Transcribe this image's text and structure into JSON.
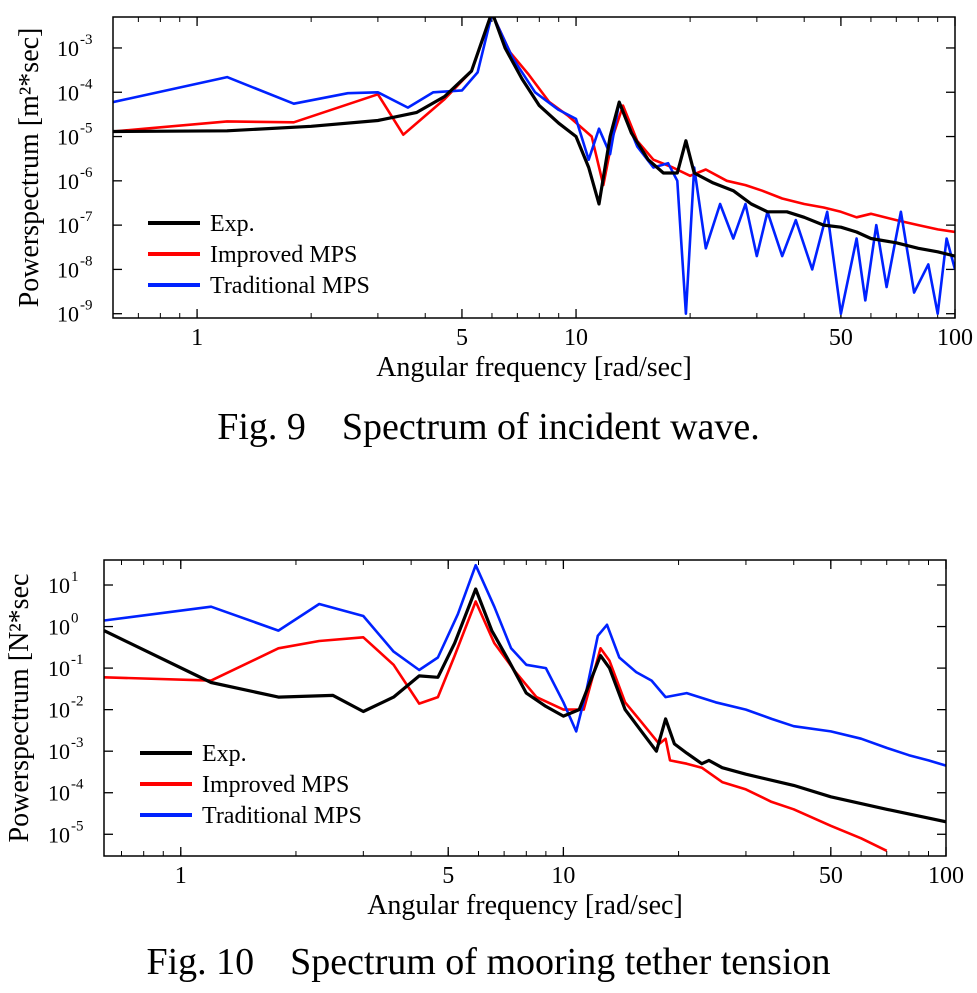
{
  "figures": [
    {
      "caption": {
        "number": "Fig. 9",
        "text": "Spectrum of incident wave."
      },
      "chart_data": {
        "type": "line",
        "title": "",
        "xlabel": "Angular frequency [rad/sec]",
        "ylabel": "Powerspectrum [m²*sec]",
        "xscale": "log",
        "yscale": "log",
        "xlim": [
          0.6,
          100
        ],
        "ylim": [
          8e-10,
          0.005
        ],
        "xticks": [
          1,
          5,
          10,
          50,
          100
        ],
        "xtick_labels": [
          "1",
          "5",
          "10",
          "50",
          "100"
        ],
        "yticks": [
          1e-09,
          1e-08,
          1e-07,
          1e-06,
          1e-05,
          0.0001,
          0.001
        ],
        "ytick_exponents": [
          "-9",
          "-8",
          "-7",
          "-6",
          "-5",
          "-4",
          "-3"
        ],
        "legend_position": "bottom-left",
        "series": [
          {
            "name": "Exp.",
            "color": "#000000",
            "points": [
              [
                0.6,
                1.3e-05
              ],
              [
                1.2,
                1.35e-05
              ],
              [
                2.0,
                1.7e-05
              ],
              [
                3.0,
                2.3e-05
              ],
              [
                3.8,
                3.5e-05
              ],
              [
                4.5,
                8e-05
              ],
              [
                5.3,
                0.0003
              ],
              [
                6.0,
                0.0065
              ],
              [
                6.5,
                0.001
              ],
              [
                7.2,
                0.0002
              ],
              [
                8.0,
                5e-05
              ],
              [
                9.0,
                2e-05
              ],
              [
                10.0,
                1e-05
              ],
              [
                10.8,
                2e-06
              ],
              [
                11.5,
                3e-07
              ],
              [
                12.3,
                1e-05
              ],
              [
                13.0,
                6e-05
              ],
              [
                14.0,
                1.2e-05
              ],
              [
                15.5,
                3e-06
              ],
              [
                17.0,
                1.5e-06
              ],
              [
                18.5,
                1.5e-06
              ],
              [
                19.5,
                8e-06
              ],
              [
                20.5,
                1.5e-06
              ],
              [
                23,
                9e-07
              ],
              [
                26,
                6e-07
              ],
              [
                29,
                3e-07
              ],
              [
                32,
                2e-07
              ],
              [
                36,
                2e-07
              ],
              [
                40,
                1.5e-07
              ],
              [
                45,
                1e-07
              ],
              [
                50,
                9e-08
              ],
              [
                55,
                7e-08
              ],
              [
                60,
                5e-08
              ],
              [
                70,
                4e-08
              ],
              [
                80,
                3e-08
              ],
              [
                90,
                2.5e-08
              ],
              [
                100,
                2e-08
              ]
            ]
          },
          {
            "name": "Improved MPS",
            "color": "#ff0000",
            "points": [
              [
                0.6,
                1.3e-05
              ],
              [
                1.2,
                2.2e-05
              ],
              [
                1.8,
                2.1e-05
              ],
              [
                3.0,
                9e-05
              ],
              [
                3.5,
                1.1e-05
              ],
              [
                4.5,
                7e-05
              ],
              [
                5.3,
                0.0003
              ],
              [
                6.0,
                0.006
              ],
              [
                6.7,
                0.0008
              ],
              [
                7.5,
                0.00025
              ],
              [
                8.5,
                6e-05
              ],
              [
                9.5,
                3e-05
              ],
              [
                11.0,
                1e-05
              ],
              [
                11.8,
                8e-07
              ],
              [
                12.5,
                1e-05
              ],
              [
                13.3,
                5e-05
              ],
              [
                14.5,
                8e-06
              ],
              [
                16.0,
                3e-06
              ],
              [
                18.0,
                2e-06
              ],
              [
                20,
                1.3e-06
              ],
              [
                22,
                1.8e-06
              ],
              [
                25,
                1e-06
              ],
              [
                28,
                8e-07
              ],
              [
                31,
                6e-07
              ],
              [
                35,
                4e-07
              ],
              [
                40,
                3e-07
              ],
              [
                45,
                2.5e-07
              ],
              [
                50,
                2e-07
              ],
              [
                55,
                1.5e-07
              ],
              [
                60,
                1.8e-07
              ],
              [
                70,
                1.3e-07
              ],
              [
                80,
                1e-07
              ],
              [
                90,
                8e-08
              ],
              [
                100,
                7e-08
              ]
            ]
          },
          {
            "name": "Traditional MPS",
            "color": "#0022ff",
            "points": [
              [
                0.6,
                6e-05
              ],
              [
                1.2,
                0.00022
              ],
              [
                1.8,
                5.5e-05
              ],
              [
                2.5,
                9.5e-05
              ],
              [
                3.0,
                0.0001
              ],
              [
                3.6,
                4.5e-05
              ],
              [
                4.2,
                0.0001
              ],
              [
                5.0,
                0.00011
              ],
              [
                5.5,
                0.00028
              ],
              [
                6.0,
                0.006
              ],
              [
                6.8,
                0.0006
              ],
              [
                7.8,
                0.0001
              ],
              [
                9.0,
                4e-05
              ],
              [
                10.0,
                2.5e-05
              ],
              [
                10.8,
                3e-06
              ],
              [
                11.5,
                1.5e-05
              ],
              [
                12.3,
                4e-06
              ],
              [
                13.0,
                6e-05
              ],
              [
                14.5,
                6e-06
              ],
              [
                16,
                2e-06
              ],
              [
                17.5,
                2.5e-06
              ],
              [
                18.5,
                1e-06
              ],
              [
                19.5,
                1e-09
              ],
              [
                20.5,
                2e-06
              ],
              [
                22,
                3e-08
              ],
              [
                24,
                3e-07
              ],
              [
                26,
                5e-08
              ],
              [
                28,
                3e-07
              ],
              [
                30,
                2e-08
              ],
              [
                32,
                2e-07
              ],
              [
                35,
                2e-08
              ],
              [
                38,
                1.3e-07
              ],
              [
                42,
                1e-08
              ],
              [
                46,
                2e-07
              ],
              [
                50,
                1e-09
              ],
              [
                55,
                5e-08
              ],
              [
                58,
                2e-09
              ],
              [
                62,
                1e-07
              ],
              [
                66,
                4e-09
              ],
              [
                72,
                2e-07
              ],
              [
                78,
                3e-09
              ],
              [
                85,
                1.3e-08
              ],
              [
                90,
                1e-09
              ],
              [
                95,
                5e-08
              ],
              [
                100,
                1e-08
              ]
            ]
          }
        ]
      }
    },
    {
      "caption": {
        "number": "Fig. 10",
        "text": "Spectrum of mooring tether tension"
      },
      "chart_data": {
        "type": "line",
        "title": "",
        "xlabel": "Angular frequency [rad/sec]",
        "ylabel": "Powerspectrum [N²*sec",
        "xscale": "log",
        "yscale": "log",
        "xlim": [
          0.63,
          100
        ],
        "ylim": [
          3e-06,
          40
        ],
        "xticks": [
          1,
          5,
          10,
          50,
          100
        ],
        "xtick_labels": [
          "1",
          "5",
          "10",
          "50",
          "100"
        ],
        "yticks": [
          1e-05,
          0.0001,
          0.001,
          0.01,
          0.1,
          1,
          10
        ],
        "ytick_exponents": [
          "-5",
          "-4",
          "-3",
          "-2",
          "-1",
          "0",
          "1"
        ],
        "legend_position": "bottom-left",
        "series": [
          {
            "name": "Exp.",
            "color": "#000000",
            "points": [
              [
                0.63,
                0.8
              ],
              [
                1.2,
                0.045
              ],
              [
                1.8,
                0.02
              ],
              [
                2.5,
                0.022
              ],
              [
                3.0,
                0.009
              ],
              [
                3.6,
                0.02
              ],
              [
                4.2,
                0.065
              ],
              [
                4.7,
                0.06
              ],
              [
                5.2,
                0.4
              ],
              [
                5.9,
                8
              ],
              [
                6.5,
                0.8
              ],
              [
                7.2,
                0.15
              ],
              [
                8.0,
                0.025
              ],
              [
                9.0,
                0.012
              ],
              [
                10.0,
                0.007
              ],
              [
                11.0,
                0.01
              ],
              [
                12.5,
                0.2
              ],
              [
                13.2,
                0.1
              ],
              [
                14.5,
                0.01
              ],
              [
                16.0,
                0.003
              ],
              [
                17.5,
                0.001
              ],
              [
                18.5,
                0.006
              ],
              [
                19.5,
                0.0015
              ],
              [
                21,
                0.0009
              ],
              [
                23,
                0.0005
              ],
              [
                24,
                0.0006
              ],
              [
                26,
                0.0004
              ],
              [
                30,
                0.00028
              ],
              [
                40,
                0.00015
              ],
              [
                50,
                8e-05
              ],
              [
                70,
                4e-05
              ],
              [
                100,
                2e-05
              ]
            ]
          },
          {
            "name": "Improved MPS",
            "color": "#ff0000",
            "points": [
              [
                0.63,
                0.06
              ],
              [
                1.2,
                0.05
              ],
              [
                1.8,
                0.3
              ],
              [
                2.3,
                0.45
              ],
              [
                3.0,
                0.55
              ],
              [
                3.6,
                0.12
              ],
              [
                4.2,
                0.014
              ],
              [
                4.7,
                0.02
              ],
              [
                5.2,
                0.2
              ],
              [
                5.9,
                4
              ],
              [
                6.6,
                0.4
              ],
              [
                7.5,
                0.08
              ],
              [
                8.5,
                0.02
              ],
              [
                10.0,
                0.01
              ],
              [
                11.3,
                0.01
              ],
              [
                12.5,
                0.3
              ],
              [
                13.2,
                0.15
              ],
              [
                14.5,
                0.015
              ],
              [
                16.0,
                0.005
              ],
              [
                17.8,
                0.0015
              ],
              [
                18.5,
                0.002
              ],
              [
                19.0,
                0.0006
              ],
              [
                21,
                0.0005
              ],
              [
                23,
                0.0004
              ],
              [
                26,
                0.00018
              ],
              [
                30,
                0.00012
              ],
              [
                35,
                6e-05
              ],
              [
                40,
                4e-05
              ],
              [
                50,
                1.6e-05
              ],
              [
                60,
                8e-06
              ],
              [
                70,
                4e-06
              ]
            ]
          },
          {
            "name": "Traditional MPS",
            "color": "#0022ff",
            "points": [
              [
                0.63,
                1.4
              ],
              [
                1.2,
                3
              ],
              [
                1.8,
                0.8
              ],
              [
                2.3,
                3.5
              ],
              [
                3.0,
                1.8
              ],
              [
                3.6,
                0.25
              ],
              [
                4.2,
                0.09
              ],
              [
                4.7,
                0.18
              ],
              [
                5.3,
                2
              ],
              [
                5.9,
                30
              ],
              [
                6.6,
                3
              ],
              [
                7.3,
                0.3
              ],
              [
                8.0,
                0.12
              ],
              [
                9.0,
                0.1
              ],
              [
                10.0,
                0.015
              ],
              [
                10.8,
                0.003
              ],
              [
                11.5,
                0.03
              ],
              [
                12.3,
                0.6
              ],
              [
                13.0,
                1.1
              ],
              [
                14.0,
                0.18
              ],
              [
                15.5,
                0.08
              ],
              [
                17.0,
                0.05
              ],
              [
                18.5,
                0.02
              ],
              [
                21,
                0.025
              ],
              [
                25,
                0.015
              ],
              [
                30,
                0.01
              ],
              [
                35,
                0.006
              ],
              [
                40,
                0.004
              ],
              [
                50,
                0.003
              ],
              [
                60,
                0.002
              ],
              [
                70,
                0.0012
              ],
              [
                80,
                0.0008
              ],
              [
                90,
                0.0006
              ],
              [
                100,
                0.00045
              ]
            ]
          }
        ]
      }
    }
  ]
}
